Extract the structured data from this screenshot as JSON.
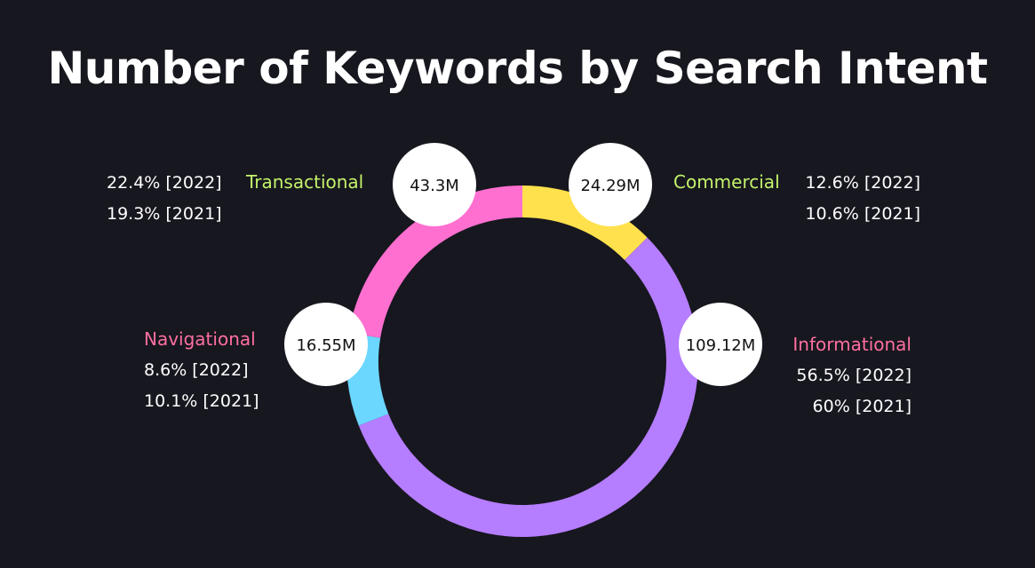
{
  "colors": {
    "background": "#17171f",
    "title": "#ffffff",
    "green_label": "#c3f36b",
    "pink_label": "#ff6fa1",
    "informational": "#b57dff",
    "transactional": "#ff6fd0",
    "commercial": "#ffe14d",
    "navigational": "#6bd7ff"
  },
  "chart_data": {
    "type": "pie",
    "variant": "donut",
    "title": "Number of Keywords by Search Intent",
    "start_angle_deg": 0,
    "direction": "clockwise",
    "series": [
      {
        "name": "Commercial",
        "value": 24.29,
        "label": "24.29M",
        "share_2022": "12.6% [2022]",
        "share_2021": "10.6% [2021]",
        "color": "#ffe14d",
        "label_color": "#c3f36b"
      },
      {
        "name": "Informational",
        "value": 109.12,
        "label": "109.12M",
        "share_2022": "56.5% [2022]",
        "share_2021": "60% [2021]",
        "color": "#b57dff",
        "label_color": "#ff6fa1"
      },
      {
        "name": "Navigational",
        "value": 16.55,
        "label": "16.55M",
        "share_2022": "8.6% [2022]",
        "share_2021": "10.1% [2021]",
        "color": "#6bd7ff",
        "label_color": "#ff6fa1"
      },
      {
        "name": "Transactional",
        "value": 43.3,
        "label": "43.3M",
        "share_2022": "22.4% [2022]",
        "share_2021": "19.3% [2021]",
        "color": "#ff6fd0",
        "label_color": "#c3f36b"
      }
    ]
  }
}
